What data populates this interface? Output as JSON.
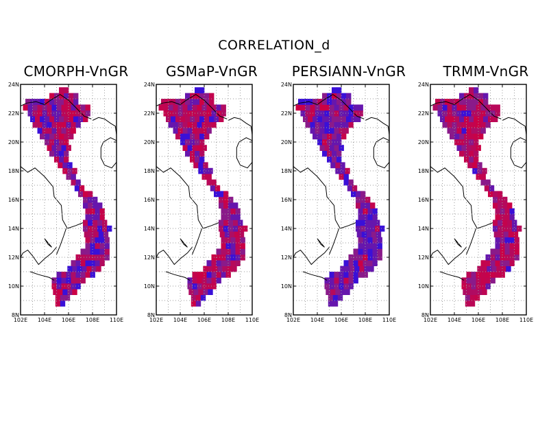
{
  "figure": {
    "title": "CORRELATION_d"
  },
  "axes": {
    "x_ticks": [
      "102E",
      "104E",
      "106E",
      "108E",
      "110E"
    ],
    "y_ticks": [
      "8N",
      "10N",
      "12N",
      "14N",
      "16N",
      "18N",
      "20N",
      "22N",
      "24N"
    ],
    "lon_range": [
      102,
      110
    ],
    "lat_range": [
      8,
      24
    ],
    "grid": true
  },
  "colors": {
    "high": "#cc0044",
    "mid": "#8a1a8a",
    "low": "#3a10d8"
  },
  "panels": [
    {
      "title": "CMORPH-VnGR",
      "blue_share": 0.3,
      "seed": 11
    },
    {
      "title": "GSMaP-VnGR",
      "blue_share": 0.22,
      "seed": 23
    },
    {
      "title": "PERSIANN-VnGR",
      "blue_share": 0.55,
      "seed": 37
    },
    {
      "title": "TRMM-VnGR",
      "blue_share": 0.15,
      "seed": 51
    }
  ]
}
